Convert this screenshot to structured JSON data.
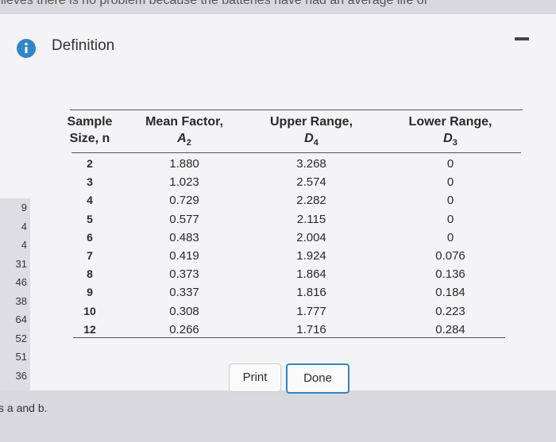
{
  "background": {
    "top_text": "elieves there is no problem because the batteries have had an average life of",
    "side_numbers": [
      "9",
      "4",
      "4",
      "31",
      "46",
      "38",
      "64",
      "52",
      "51",
      "36"
    ],
    "bottom_text": "s a and b."
  },
  "dialog": {
    "title": "Definition",
    "table": {
      "headers": [
        {
          "line1": "Sample",
          "line2": "Size, n"
        },
        {
          "line1": "Mean Factor,",
          "symbol": "A",
          "sub": "2"
        },
        {
          "line1": "Upper Range,",
          "symbol": "D",
          "sub": "4"
        },
        {
          "line1": "Lower Range,",
          "symbol": "D",
          "sub": "3"
        }
      ],
      "rows": [
        [
          "2",
          "1.880",
          "3.268",
          "0"
        ],
        [
          "3",
          "1.023",
          "2.574",
          "0"
        ],
        [
          "4",
          "0.729",
          "2.282",
          "0"
        ],
        [
          "5",
          "0.577",
          "2.115",
          "0"
        ],
        [
          "6",
          "0.483",
          "2.004",
          "0"
        ],
        [
          "7",
          "0.419",
          "1.924",
          "0.076"
        ],
        [
          "8",
          "0.373",
          "1.864",
          "0.136"
        ],
        [
          "9",
          "0.337",
          "1.816",
          "0.184"
        ],
        [
          "10",
          "0.308",
          "1.777",
          "0.223"
        ],
        [
          "12",
          "0.266",
          "1.716",
          "0.284"
        ]
      ]
    },
    "buttons": {
      "print": "Print",
      "done": "Done"
    }
  }
}
